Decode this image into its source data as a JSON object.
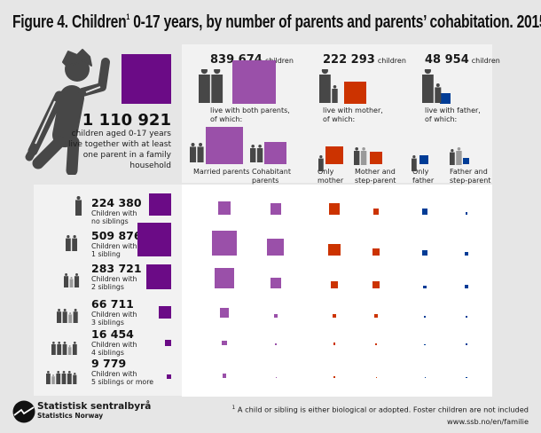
{
  "title": {
    "text": "Figure 4. Children",
    "sup": "1",
    "rest": " 0-17 years, by number of parents and parents’ cohabitation. 2015"
  },
  "summary": {
    "total": "1 110 921",
    "value": 1110921,
    "text_lines": [
      "children aged 0-17 years",
      "live together with at least",
      "one parent in a family",
      "household"
    ]
  },
  "colors": {
    "total": "#6b0b86",
    "both_parents": "#9a50a9",
    "mother": "#cc3300",
    "father": "#003c96",
    "icon": "#474747"
  },
  "groups": [
    {
      "count": "839 674",
      "unit": "children",
      "value": 839674,
      "label_lines": [
        "live with both parents,",
        "of which:"
      ],
      "subgroups": [
        {
          "label_lines": [
            "Married parents"
          ],
          "value": 615000
        },
        {
          "label_lines": [
            "Cohabitant",
            "parents"
          ],
          "value": 225000
        }
      ]
    },
    {
      "count": "222 293",
      "unit": "children",
      "value": 222293,
      "label_lines": [
        "live with mother,",
        "of which:"
      ],
      "subgroups": [
        {
          "label_lines": [
            "Only",
            "mother"
          ],
          "value": 148000
        },
        {
          "label_lines": [
            "Mother and",
            "step-parent"
          ],
          "value": 74000
        }
      ]
    },
    {
      "count": "48 954",
      "unit": "children",
      "value": 48954,
      "label_lines": [
        "live with father,",
        "of which:"
      ],
      "subgroups": [
        {
          "label_lines": [
            "Only",
            "father"
          ],
          "value": 33000
        },
        {
          "label_lines": [
            "Father and",
            "step-parent"
          ],
          "value": 16000
        }
      ]
    }
  ],
  "siblings": [
    {
      "count": "224 380",
      "value": 224380,
      "label_lines": [
        "Children with",
        "no siblings"
      ]
    },
    {
      "count": "509 876",
      "value": 509876,
      "label_lines": [
        "Children with",
        "1 sibling"
      ]
    },
    {
      "count": "283 721",
      "value": 283721,
      "label_lines": [
        "Children with",
        "2 siblings"
      ]
    },
    {
      "count": "66 711",
      "value": 66711,
      "label_lines": [
        "Children with",
        "3 siblings"
      ]
    },
    {
      "count": "16 454",
      "value": 16454,
      "label_lines": [
        "Children with",
        "4 siblings"
      ]
    },
    {
      "count": "9 779",
      "value": 9779,
      "label_lines": [
        "Children with",
        "5 siblings or more"
      ]
    }
  ],
  "chart_data": {
    "type": "table",
    "encoding": "square area proportional to number of children",
    "rows": "number of siblings (0, 1, 2, 3, 4, 5+)",
    "columns": "Married parents, Cohabitant parents, Only mother, Mother and step-parent, Only father, Father and step-parent",
    "grid_values": [
      [
        75000,
        58000,
        57000,
        16000,
        16000,
        3000
      ],
      [
        278000,
        128000,
        60000,
        23000,
        11000,
        6000
      ],
      [
        183000,
        48000,
        21000,
        21000,
        4000,
        5000
      ],
      [
        42000,
        7000,
        7000,
        7000,
        1000,
        2000
      ],
      [
        10000,
        1200,
        2500,
        1200,
        600,
        1000
      ],
      [
        7200,
        300,
        1200,
        300,
        300,
        600
      ]
    ]
  },
  "footer": {
    "logo_name": "Statistisk sentralbyrå",
    "logo_sub": "Statistics Norway",
    "footnote_sup": "1",
    "footnote": "A child or sibling is either biological or adopted. Foster children are not included",
    "url": "www.ssb.no/en/familie"
  }
}
